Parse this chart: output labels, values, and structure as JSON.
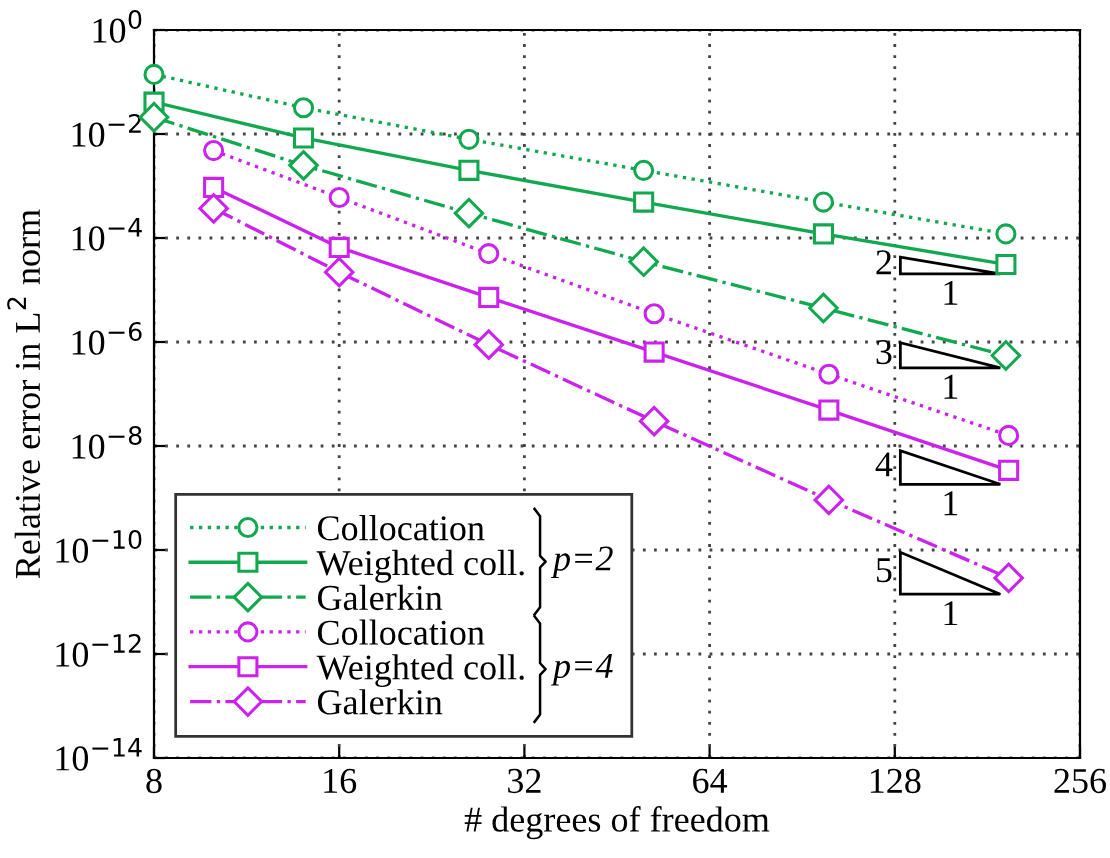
{
  "chart_data": {
    "type": "line",
    "xlabel": "# degrees of freedom",
    "ylabel": "Relative error in L$^{2}$ norm",
    "log": "xy",
    "grid": true,
    "legend": "bottom left",
    "xlim": [
      8,
      256
    ],
    "xticks": [
      8,
      16,
      32,
      64,
      128,
      256
    ],
    "ylim": [
      1e-14,
      1
    ],
    "yticks": [
      {
        "value": 1e-14,
        "label": "10$^{−14}$"
      },
      {
        "value": 1e-12,
        "label": "10$^{−12}$"
      },
      {
        "value": 1e-10,
        "label": "10$^{−10}$"
      },
      {
        "value": 1e-08,
        "label": "10$^{−8}$"
      },
      {
        "value": 1e-06,
        "label": "10$^{−6}$"
      },
      {
        "value": 0.0001,
        "label": "10$^{−4}$"
      },
      {
        "value": 0.01,
        "label": "10$^{−2}$"
      },
      {
        "value": 1,
        "label": "10$^{0}$"
      }
    ],
    "series": [
      {
        "name": "Collocation",
        "color": "#12a84f",
        "marker": "circle",
        "line_style": "dotted",
        "x": [
          8,
          14,
          26,
          50,
          98,
          194
        ],
        "values": [
          0.14,
          0.032,
          0.0079,
          0.002,
          0.00049,
          0.00012
        ]
      },
      {
        "name": "Weighted coll.",
        "color": "#12a84f",
        "marker": "square",
        "line_style": "solid",
        "x": [
          8,
          14,
          26,
          50,
          98,
          194
        ],
        "values": [
          0.041,
          0.0084,
          0.002,
          0.00049,
          0.00012,
          3.1e-05
        ]
      },
      {
        "name": "Galerkin",
        "color": "#12a84f",
        "marker": "diamond",
        "line_style": "dashdot",
        "x": [
          8,
          14,
          26,
          50,
          98,
          194
        ],
        "values": [
          0.021,
          0.0025,
          0.0003,
          3.5e-05,
          4.5e-06,
          5.5e-07
        ]
      },
      {
        "name": "Collocation",
        "color": "#cc22ee",
        "marker": "circle",
        "line_style": "dotted",
        "x": [
          10,
          16,
          28,
          52,
          100,
          196
        ],
        "values": [
          0.0048,
          0.0006,
          5e-05,
          3.5e-06,
          2.4e-07,
          1.6e-08
        ]
      },
      {
        "name": "Weighted coll.",
        "color": "#cc22ee",
        "marker": "square",
        "line_style": "solid",
        "x": [
          10,
          16,
          28,
          52,
          100,
          196
        ],
        "values": [
          0.00094,
          6.6e-05,
          7.2e-06,
          6.4e-07,
          4.9e-08,
          3.4e-09
        ]
      },
      {
        "name": "Galerkin",
        "color": "#cc22ee",
        "marker": "diamond",
        "line_style": "dashdot",
        "x": [
          10,
          16,
          28,
          52,
          100,
          196
        ],
        "values": [
          0.00037,
          2.2e-05,
          8.9e-07,
          3e-08,
          9.2e-10,
          2.9e-11
        ]
      }
    ],
    "annotations": [
      "p=2",
      "p=4",
      "2",
      "1",
      "3",
      "1",
      "4",
      "1",
      "5",
      "1"
    ]
  }
}
